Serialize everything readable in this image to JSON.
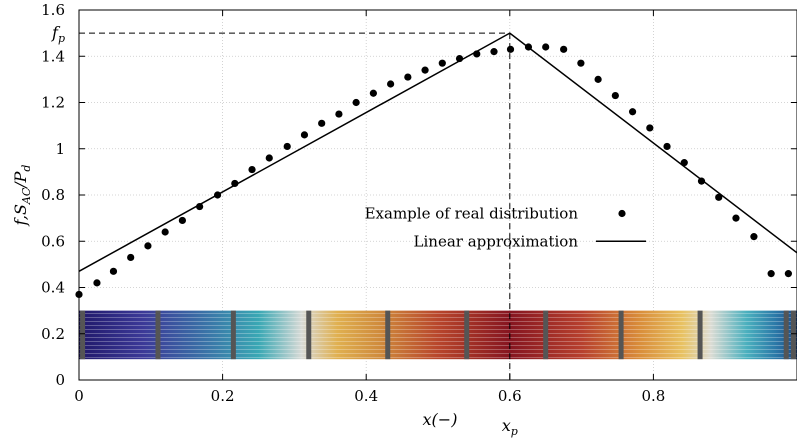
{
  "chart_data": {
    "type": "scatter",
    "xlabel": "x(−)",
    "ylabel_parts": {
      "base": "f,S",
      "sub1": "AC",
      "mid": "/P",
      "sub2": "d"
    },
    "xlim": [
      0,
      1.0
    ],
    "ylim": [
      0,
      1.6
    ],
    "x_ticks": [
      0,
      0.2,
      0.4,
      0.6,
      0.8
    ],
    "x_tick_labels": [
      "0",
      "0.2",
      "0.4",
      "0.6",
      "0.8"
    ],
    "y_ticks": [
      0,
      0.2,
      0.4,
      0.6,
      0.8,
      1.0,
      1.2,
      1.4,
      1.6
    ],
    "y_tick_labels": [
      "0",
      "0.2",
      "0.4",
      "0.6",
      "0.8",
      "1",
      "1.2",
      "1.4",
      "1.6"
    ],
    "grid": true,
    "legend_position": "center-right",
    "extra_labels": {
      "fp": {
        "base": "f",
        "sub": "p",
        "y": 1.5
      },
      "xp": {
        "base": "x",
        "sub": "p",
        "x": 0.6
      }
    },
    "peak": {
      "x": 0.6,
      "y": 1.5
    },
    "series": [
      {
        "name": "Example of real distribution",
        "kind": "points",
        "x": [
          0.0,
          0.025,
          0.048,
          0.072,
          0.096,
          0.12,
          0.144,
          0.168,
          0.193,
          0.217,
          0.241,
          0.265,
          0.29,
          0.314,
          0.338,
          0.362,
          0.386,
          0.41,
          0.434,
          0.458,
          0.482,
          0.506,
          0.53,
          0.554,
          0.578,
          0.601,
          0.626,
          0.65,
          0.675,
          0.699,
          0.723,
          0.747,
          0.771,
          0.795,
          0.819,
          0.843,
          0.867,
          0.891,
          0.915,
          0.94,
          0.964,
          0.988
        ],
        "y": [
          0.37,
          0.42,
          0.47,
          0.53,
          0.58,
          0.64,
          0.69,
          0.75,
          0.8,
          0.85,
          0.91,
          0.96,
          1.01,
          1.06,
          1.11,
          1.15,
          1.2,
          1.24,
          1.28,
          1.31,
          1.34,
          1.37,
          1.39,
          1.41,
          1.42,
          1.43,
          1.44,
          1.44,
          1.43,
          1.37,
          1.3,
          1.23,
          1.16,
          1.09,
          1.01,
          0.94,
          0.86,
          0.79,
          0.7,
          0.62,
          0.46,
          0.46
        ]
      },
      {
        "name": "Linear approximation",
        "kind": "line",
        "x": [
          0.0,
          0.6,
          1.0
        ],
        "y": [
          0.47,
          1.5,
          0.55
        ]
      }
    ],
    "color_strip": {
      "y_range": [
        0.09,
        0.3
      ],
      "colors": [
        "#20186a",
        "#3c3a98",
        "#3a6fa6",
        "#3aa8b4",
        "#d8dad6",
        "#e0b050",
        "#cf8a3c",
        "#b8462c",
        "#861520",
        "#b7402e",
        "#d98d3a",
        "#e8c262",
        "#dcdcd4",
        "#4bb0be",
        "#2b79a8",
        "#1f4a86"
      ],
      "color_stops_x": [
        0.0,
        0.09,
        0.17,
        0.25,
        0.31,
        0.36,
        0.42,
        0.5,
        0.6,
        0.7,
        0.78,
        0.84,
        0.88,
        0.93,
        0.97,
        1.0
      ],
      "separators_x": [
        0.005,
        0.11,
        0.215,
        0.32,
        0.43,
        0.54,
        0.65,
        0.755,
        0.865,
        0.985,
        0.995
      ]
    }
  }
}
